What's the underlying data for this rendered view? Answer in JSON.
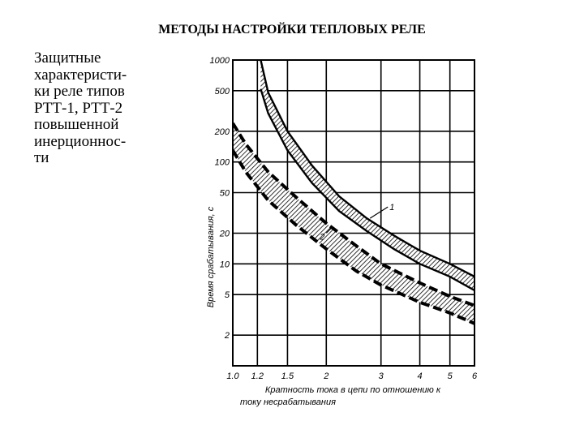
{
  "slide": {
    "title": "МЕТОДЫ НАСТРОЙКИ ТЕПЛОВЫХ РЕЛЕ",
    "description_lines": [
      "Защитные",
      "характеристи-",
      "ки реле типов",
      "РТТ-1, РТТ-2",
      "повышенной",
      "инерционнос-",
      "ти"
    ]
  },
  "chart_data": {
    "type": "line",
    "title": "",
    "xlabel": "Кратность тока в цепи по отношению к току несрабатывания",
    "ylabel": "Время срабатывания, с",
    "x_scale": "log",
    "y_scale": "log",
    "xlim": [
      1.0,
      6
    ],
    "ylim": [
      1,
      1000
    ],
    "x_ticks": [
      1.0,
      1.2,
      1.5,
      2,
      3,
      4,
      5,
      6
    ],
    "x_tick_labels": [
      "1.0",
      "1.2",
      "1.5",
      "2",
      "3",
      "4",
      "5",
      "6"
    ],
    "y_ticks": [
      1000,
      500,
      200,
      100,
      50,
      20,
      10,
      5,
      2
    ],
    "y_tick_labels": [
      "1000",
      "500",
      "200",
      "100",
      "50",
      "20",
      "10",
      "5",
      "2"
    ],
    "grid": true,
    "series": [
      {
        "name": "1",
        "style": "hatched band, solid edges",
        "x": [
          1.23,
          1.3,
          1.5,
          1.8,
          2.2,
          2.7,
          3.3,
          4.0,
          5.0,
          6.0
        ],
        "upper": [
          1000,
          480,
          200,
          92,
          46,
          28,
          19,
          13.5,
          10,
          7.5
        ],
        "lower": [
          520,
          300,
          130,
          62,
          33,
          21,
          14,
          10,
          7.5,
          5.5
        ]
      },
      {
        "name": "2",
        "style": "hatched band, dashed edges",
        "x": [
          1.0,
          1.1,
          1.3,
          1.6,
          2.0,
          2.5,
          3.0,
          4.0,
          5.0,
          6.0
        ],
        "upper": [
          240,
          150,
          80,
          45,
          25,
          15,
          10,
          6.5,
          4.8,
          3.9
        ],
        "lower": [
          130,
          80,
          42,
          24,
          14,
          8.5,
          6.2,
          4.2,
          3.3,
          2.6
        ]
      }
    ]
  }
}
